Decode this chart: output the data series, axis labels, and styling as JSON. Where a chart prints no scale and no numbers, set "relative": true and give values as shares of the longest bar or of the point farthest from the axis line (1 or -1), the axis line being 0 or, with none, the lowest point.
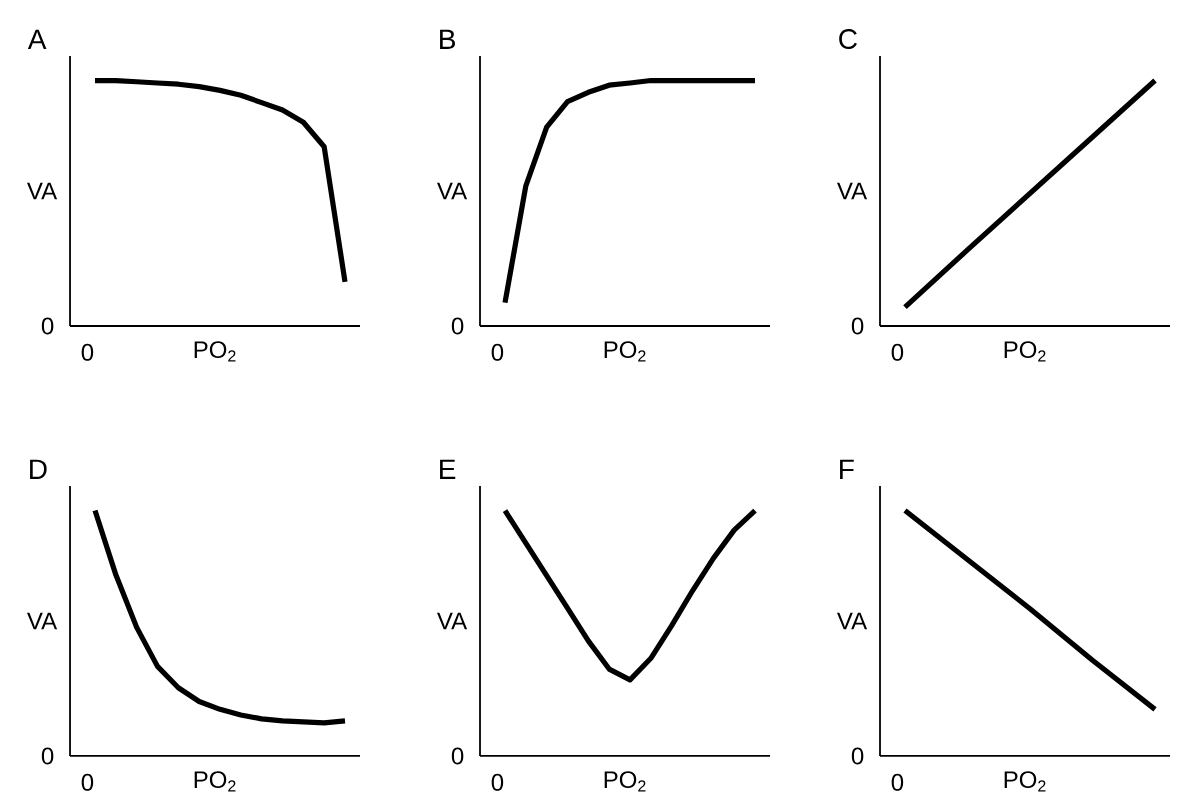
{
  "chart_data": [
    {
      "type": "line",
      "title": "A",
      "xlabel": "PO$_{2}$",
      "ylabel": "VA",
      "relative": true,
      "color": "#000000",
      "annotations": [
        "0",
        "0"
      ],
      "categories": [
        null,
        null,
        null,
        null,
        null,
        null,
        null,
        null,
        null,
        null,
        null,
        null,
        null
      ],
      "values": [
        1,
        1,
        0.995,
        0.99,
        0.985,
        0.975,
        0.96,
        0.94,
        0.91,
        0.88,
        0.83,
        0.73,
        0.18
      ]
    },
    {
      "type": "line",
      "title": "B",
      "xlabel": "PO$_{2}$",
      "ylabel": "VA",
      "relative": true,
      "color": "#000000",
      "annotations": [
        "0",
        "0"
      ],
      "categories": [
        null,
        null,
        null,
        null,
        null,
        null,
        null,
        null,
        null,
        null,
        null,
        null,
        null
      ],
      "values": [
        0.095,
        0.571,
        0.81,
        0.914,
        0.952,
        0.981,
        0.99,
        1,
        1,
        1,
        1,
        1,
        1
      ]
    },
    {
      "type": "line",
      "title": "C",
      "xlabel": "PO$_{2}$",
      "ylabel": "VA",
      "relative": true,
      "color": "#000000",
      "annotations": [
        "0",
        "0"
      ],
      "categories": [
        null,
        null,
        null,
        null,
        null
      ],
      "values": [
        0.077,
        0.31,
        0.54,
        0.77,
        1
      ]
    },
    {
      "type": "line",
      "title": "D",
      "xlabel": "PO$_{2}$",
      "ylabel": "VA",
      "relative": true,
      "color": "#000000",
      "annotations": [
        "0",
        "0"
      ],
      "categories": [
        null,
        null,
        null,
        null,
        null,
        null,
        null,
        null,
        null,
        null,
        null,
        null,
        null
      ],
      "values": [
        1,
        0.738,
        0.524,
        0.365,
        0.278,
        0.222,
        0.19,
        0.167,
        0.151,
        0.143,
        0.139,
        0.135,
        0.143
      ]
    },
    {
      "type": "line",
      "title": "E",
      "xlabel": "PO$_{2}$",
      "ylabel": "VA",
      "relative": true,
      "color": "#000000",
      "annotations": [
        "0",
        "0"
      ],
      "categories": [
        null,
        null,
        null,
        null,
        null,
        null,
        null,
        null,
        null,
        null,
        null,
        null,
        null
      ],
      "values": [
        1,
        0.867,
        0.735,
        0.602,
        0.469,
        0.354,
        0.31,
        0.398,
        0.531,
        0.673,
        0.805,
        0.92,
        1
      ]
    },
    {
      "type": "line",
      "title": "F",
      "xlabel": "PO$_{2}$",
      "ylabel": "VA",
      "relative": true,
      "color": "#000000",
      "annotations": [
        "0",
        "0"
      ],
      "categories": [
        null,
        null,
        null,
        null,
        null
      ],
      "values": [
        1,
        0.8,
        0.6,
        0.39,
        0.19
      ]
    }
  ]
}
